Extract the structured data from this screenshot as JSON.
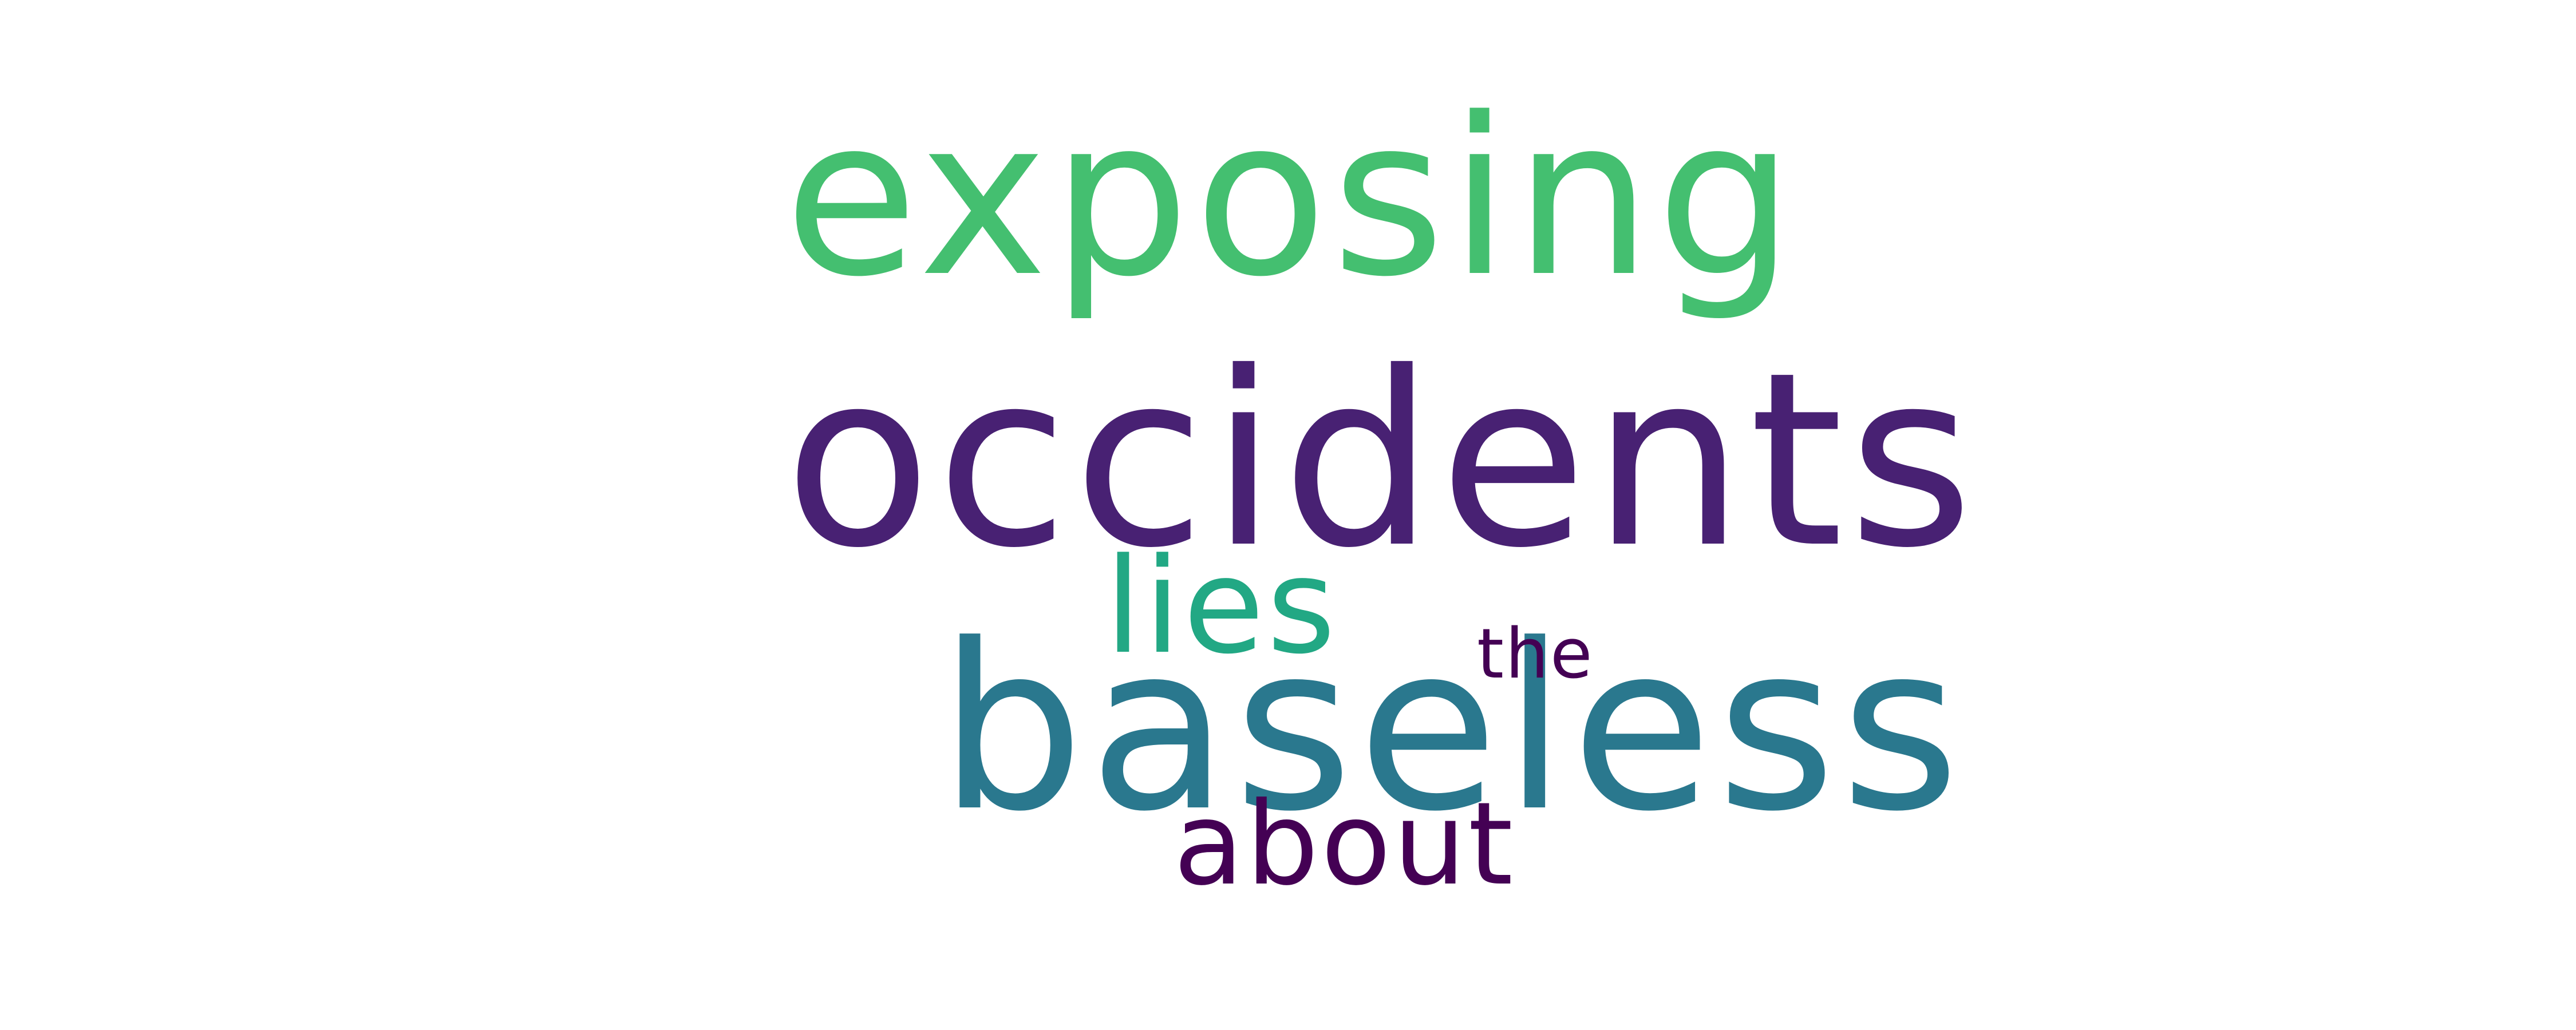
{
  "word_cloud": {
    "background_color": "#ffffff",
    "words": [
      {
        "id": "exposing",
        "text": "exposing",
        "color": "#44bf70"
      },
      {
        "id": "occidents",
        "text": "occidents",
        "color": "#482173"
      },
      {
        "id": "lies",
        "text": "lies",
        "color": "#22a884"
      },
      {
        "id": "baseless",
        "text": "baseless",
        "color": "#2a788e"
      },
      {
        "id": "the",
        "text": "the",
        "color": "#440154"
      },
      {
        "id": "about",
        "text": "about",
        "color": "#440154"
      }
    ]
  }
}
